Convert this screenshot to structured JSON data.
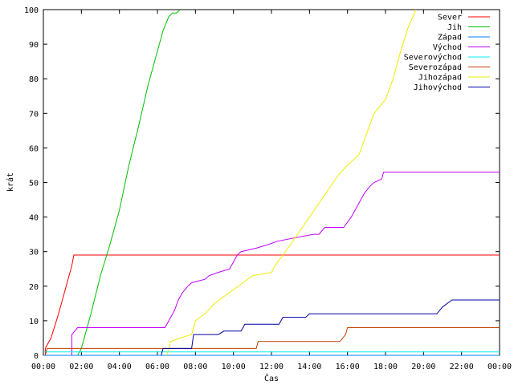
{
  "chart_data": {
    "type": "line",
    "xlabel": "Čas",
    "ylabel": "krát",
    "xlim": [
      0,
      24
    ],
    "ylim": [
      0,
      100
    ],
    "x_ticks": [
      {
        "value": 0,
        "label": "00:00"
      },
      {
        "value": 2,
        "label": "02:00"
      },
      {
        "value": 4,
        "label": "04:00"
      },
      {
        "value": 6,
        "label": "06:00"
      },
      {
        "value": 8,
        "label": "08:00"
      },
      {
        "value": 10,
        "label": "10:00"
      },
      {
        "value": 12,
        "label": "12:00"
      },
      {
        "value": 14,
        "label": "14:00"
      },
      {
        "value": 16,
        "label": "16:00"
      },
      {
        "value": 18,
        "label": "18:00"
      },
      {
        "value": 20,
        "label": "20:00"
      },
      {
        "value": 22,
        "label": "22:00"
      },
      {
        "value": 24,
        "label": "00:00"
      }
    ],
    "y_ticks": [
      0,
      10,
      20,
      30,
      40,
      50,
      60,
      70,
      80,
      90,
      100
    ],
    "legend_position": "top-right",
    "grid": false,
    "series": [
      {
        "name": "Sever",
        "color": "#ff0000",
        "points": [
          [
            0.1,
            0
          ],
          [
            0.1,
            2
          ],
          [
            0.4,
            5
          ],
          [
            0.8,
            12
          ],
          [
            1.2,
            20
          ],
          [
            1.5,
            26
          ],
          [
            1.6,
            29
          ],
          [
            24,
            29
          ]
        ]
      },
      {
        "name": "Jih",
        "color": "#00c000",
        "points": [
          [
            1.8,
            0
          ],
          [
            2.0,
            2
          ],
          [
            2.5,
            12
          ],
          [
            3.0,
            23
          ],
          [
            3.5,
            32
          ],
          [
            4.0,
            42
          ],
          [
            4.5,
            55
          ],
          [
            5.0,
            66
          ],
          [
            5.5,
            78
          ],
          [
            6.0,
            88
          ],
          [
            6.3,
            94
          ],
          [
            6.6,
            98
          ],
          [
            6.8,
            99
          ],
          [
            7.0,
            99
          ],
          [
            7.2,
            100
          ]
        ]
      },
      {
        "name": "Západ",
        "color": "#0080ff",
        "points": [
          [
            0,
            0
          ],
          [
            24,
            0
          ]
        ]
      },
      {
        "name": "Východ",
        "color": "#c000ff",
        "points": [
          [
            1.5,
            0
          ],
          [
            1.5,
            6
          ],
          [
            1.8,
            8
          ],
          [
            6.4,
            8
          ],
          [
            6.6,
            10
          ],
          [
            6.9,
            13
          ],
          [
            7.1,
            16
          ],
          [
            7.3,
            18
          ],
          [
            7.6,
            20
          ],
          [
            7.8,
            21
          ],
          [
            8.5,
            22
          ],
          [
            8.7,
            23
          ],
          [
            9.2,
            24
          ],
          [
            9.8,
            25
          ],
          [
            10.0,
            27
          ],
          [
            10.2,
            29
          ],
          [
            10.4,
            30
          ],
          [
            11.2,
            31
          ],
          [
            11.8,
            32
          ],
          [
            12.3,
            33
          ],
          [
            14.2,
            35
          ],
          [
            14.5,
            35
          ],
          [
            14.8,
            37
          ],
          [
            15.8,
            37
          ],
          [
            16.2,
            40
          ],
          [
            16.5,
            43
          ],
          [
            16.7,
            45
          ],
          [
            16.9,
            47
          ],
          [
            17.2,
            49
          ],
          [
            17.4,
            50
          ],
          [
            17.8,
            51
          ],
          [
            17.9,
            53
          ],
          [
            24,
            53
          ]
        ]
      },
      {
        "name": "Severovýchod",
        "color": "#00eeee",
        "points": [
          [
            0,
            1
          ],
          [
            24,
            1
          ]
        ]
      },
      {
        "name": "Severozápad",
        "color": "#c04000",
        "points": [
          [
            0.1,
            0
          ],
          [
            0.2,
            2
          ],
          [
            11.2,
            2
          ],
          [
            11.3,
            4
          ],
          [
            15.6,
            4
          ],
          [
            15.9,
            6
          ],
          [
            16.0,
            8
          ],
          [
            24,
            8
          ]
        ]
      },
      {
        "name": "Jihozápad",
        "color": "#eeee00",
        "points": [
          [
            6.5,
            0
          ],
          [
            6.7,
            4
          ],
          [
            7.2,
            5
          ],
          [
            7.8,
            6
          ],
          [
            8.0,
            10
          ],
          [
            8.5,
            12
          ],
          [
            9.0,
            15
          ],
          [
            9.5,
            17
          ],
          [
            10.0,
            19
          ],
          [
            10.5,
            21
          ],
          [
            11.0,
            23
          ],
          [
            12.0,
            24
          ],
          [
            12.2,
            26
          ],
          [
            12.6,
            29
          ],
          [
            13.0,
            32
          ],
          [
            13.5,
            36
          ],
          [
            14.0,
            40
          ],
          [
            14.5,
            44
          ],
          [
            15.0,
            48
          ],
          [
            15.5,
            52
          ],
          [
            16.0,
            55
          ],
          [
            16.6,
            58
          ],
          [
            17.0,
            64
          ],
          [
            17.4,
            70
          ],
          [
            18.0,
            74
          ],
          [
            18.4,
            80
          ],
          [
            18.8,
            88
          ],
          [
            19.2,
            95
          ],
          [
            19.6,
            100
          ]
        ]
      },
      {
        "name": "Jihovýchod",
        "color": "#0000a0",
        "points": [
          [
            6.2,
            0
          ],
          [
            6.3,
            2
          ],
          [
            7.8,
            2
          ],
          [
            7.9,
            6
          ],
          [
            9.2,
            6
          ],
          [
            9.5,
            7
          ],
          [
            10.4,
            7
          ],
          [
            10.6,
            9
          ],
          [
            12.4,
            9
          ],
          [
            12.6,
            11
          ],
          [
            13.8,
            11
          ],
          [
            14.0,
            12
          ],
          [
            20.7,
            12
          ],
          [
            21.0,
            14
          ],
          [
            21.5,
            16
          ],
          [
            24,
            16
          ]
        ]
      }
    ]
  }
}
